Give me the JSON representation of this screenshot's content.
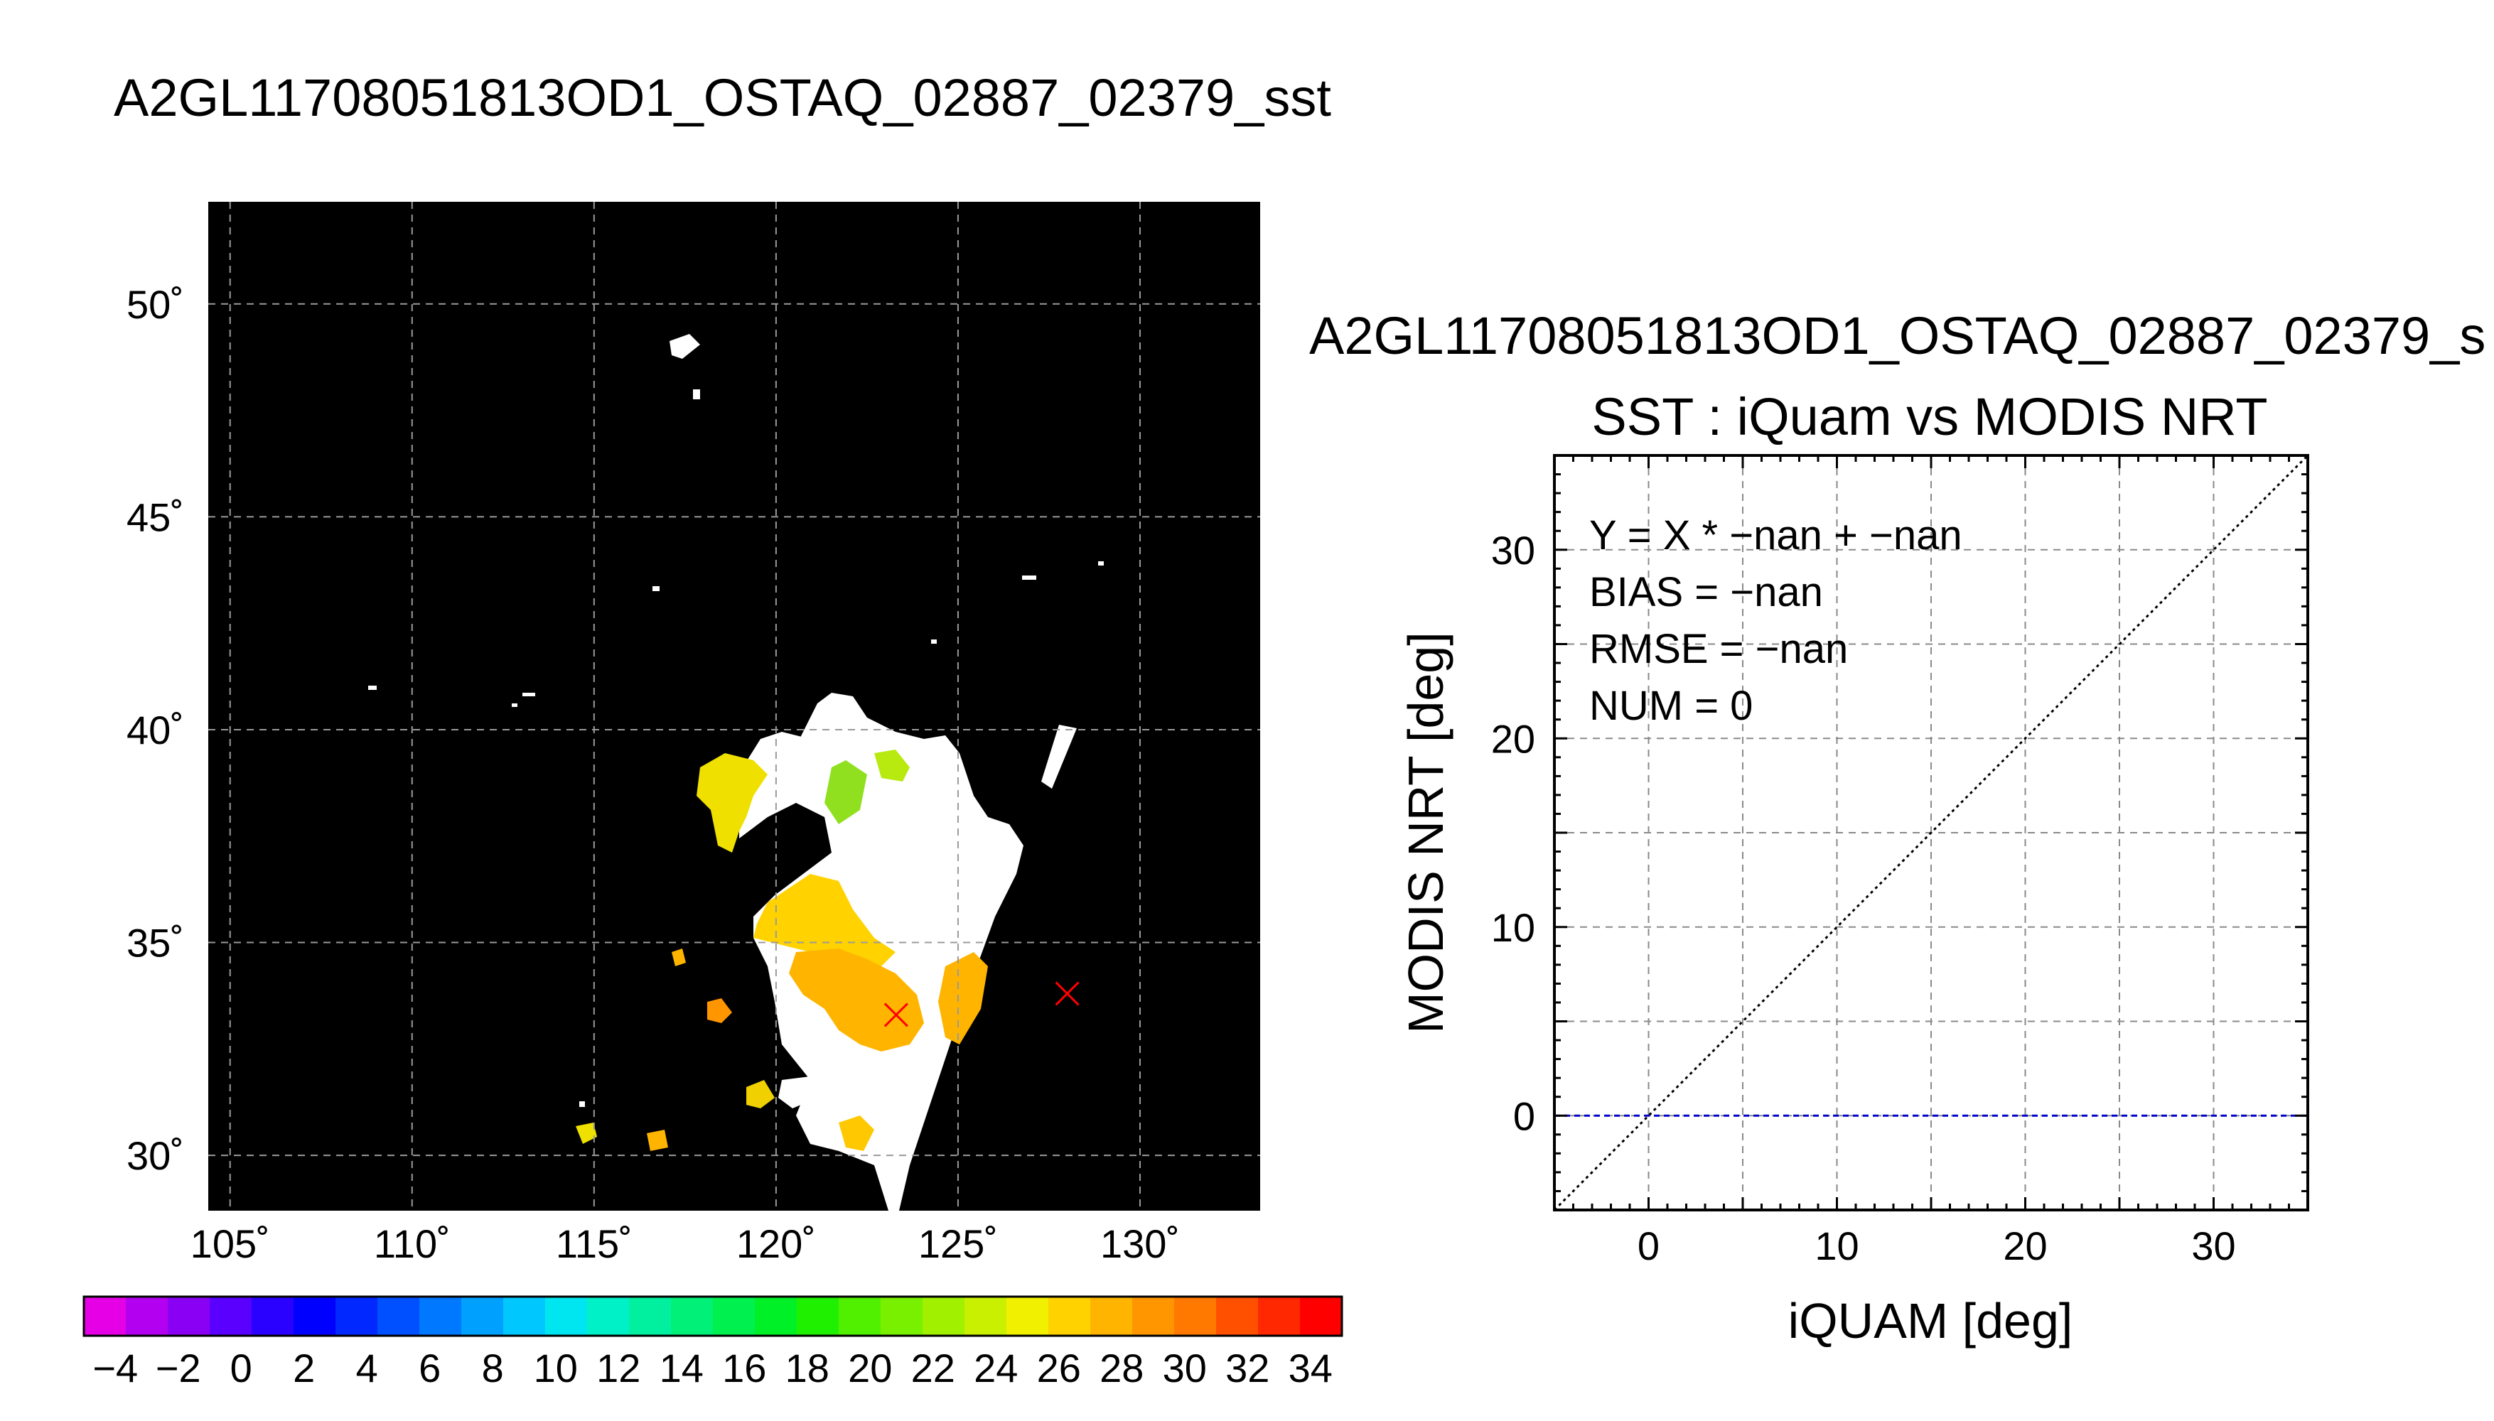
{
  "main_title": "A2GL11708051813OD1_OSTAQ_02887_02379_sst",
  "map": {
    "lat_labels": [
      "50˚",
      "45˚",
      "40˚",
      "35˚",
      "30˚"
    ],
    "lon_labels": [
      "105˚",
      "110˚",
      "115˚",
      "120˚",
      "125˚",
      "130˚"
    ],
    "lat_range": [
      28.7,
      52.4
    ],
    "lon_range": [
      104.4,
      133.3
    ],
    "lat_ticks": [
      50,
      45,
      40,
      35,
      30
    ],
    "lon_ticks": [
      105,
      110,
      115,
      120,
      125,
      130
    ],
    "markers": [
      {
        "lon": 123.3,
        "lat": 33.3,
        "symbol": "×",
        "color": "#ff0000"
      },
      {
        "lon": 128.0,
        "lat": 33.8,
        "symbol": "×",
        "color": "#ff0000"
      }
    ],
    "background_color": "#000000",
    "grid": true
  },
  "colorbar": {
    "tick_labels": [
      "−4",
      "−2",
      "0",
      "2",
      "4",
      "6",
      "8",
      "10",
      "12",
      "14",
      "16",
      "18",
      "20",
      "22",
      "24",
      "26",
      "28",
      "30",
      "32",
      "34"
    ],
    "range": [
      -5,
      35
    ],
    "colors": [
      "#e600e6",
      "#b400f0",
      "#8a00f5",
      "#5a00ff",
      "#2a00ff",
      "#0000ff",
      "#0028ff",
      "#0050ff",
      "#0078ff",
      "#00a0ff",
      "#00c8ff",
      "#00e6f0",
      "#00f0c8",
      "#00f0a0",
      "#00f078",
      "#00f050",
      "#00f028",
      "#1ef000",
      "#50f000",
      "#78f000",
      "#a0f000",
      "#c8f000",
      "#f0f000",
      "#ffd200",
      "#ffb400",
      "#ff9600",
      "#ff7800",
      "#ff5000",
      "#ff2800",
      "#ff0000"
    ]
  },
  "side_title": "A2GL11708051813OD1_OSTAQ_02887_02379_s",
  "chart_data": {
    "type": "scatter",
    "title": "SST : iQuam vs MODIS NRT",
    "xlabel": "iQUAM [deg]",
    "ylabel": "MODIS NRT [deg]",
    "xlim": [
      -5,
      35
    ],
    "ylim": [
      -5,
      35
    ],
    "xticks": [
      0,
      10,
      20,
      30
    ],
    "yticks": [
      0,
      10,
      20,
      30
    ],
    "grid": true,
    "points": [],
    "reference_lines": [
      {
        "name": "1:1",
        "x": [
          -5,
          35
        ],
        "y": [
          -5,
          35
        ],
        "style": "dotted",
        "color": "#000000"
      },
      {
        "name": "fit",
        "x": [
          -5,
          35
        ],
        "y": [
          0,
          0
        ],
        "style": "dashed",
        "color": "#0000cc"
      }
    ],
    "annotations": [
      "Y = X * −nan + −nan",
      "BIAS = −nan",
      "RMSE = −nan",
      "NUM = 0"
    ]
  }
}
